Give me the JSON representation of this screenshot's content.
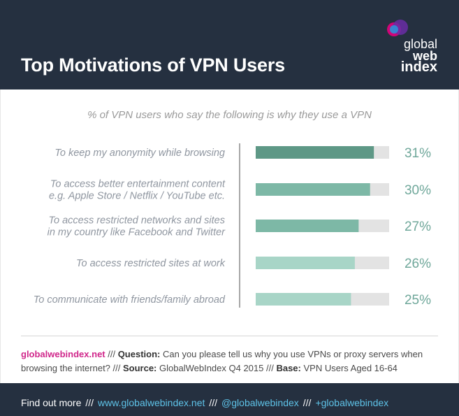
{
  "header": {
    "title": "Top Motivations of VPN Users",
    "logo": {
      "line1": "global",
      "line2": "web",
      "line3": "index"
    }
  },
  "chart_data": {
    "type": "bar",
    "orientation": "horizontal",
    "title": "Top Motivations of VPN Users",
    "subtitle": "% of VPN users who say the following is why they use a VPN",
    "categories": [
      [
        "To keep my anonymity while browsing"
      ],
      [
        "To access better entertainment content",
        "e.g. Apple Store / Netflix / YouTube etc."
      ],
      [
        "To access restricted networks and sites",
        "in my country like Facebook and Twitter"
      ],
      [
        "To access restricted sites at work"
      ],
      [
        "To communicate with friends/family abroad"
      ]
    ],
    "values": [
      31,
      30,
      27,
      26,
      25
    ],
    "value_labels": [
      "31%",
      "30%",
      "27%",
      "26%",
      "25%"
    ],
    "xlim": [
      0,
      35
    ],
    "colors": [
      "#5e9886",
      "#7db8a6",
      "#7db8a6",
      "#a8d5c7",
      "#a8d5c7"
    ],
    "track_color": "#e3e3e3",
    "value_label_color": "#6fa79a",
    "grid": false,
    "legend": "none"
  },
  "footnote": {
    "site": "globalwebindex.net",
    "sep": " /// ",
    "question_label": "Question:",
    "question": "Can you please tell us why you use VPNs or proxy servers when browsing the internet?",
    "source_label": "Source:",
    "source": "GlobalWebIndex Q4 2015",
    "base_label": "Base:",
    "base": "VPN Users Aged 16-64"
  },
  "footer": {
    "find_out_more": "Find out more",
    "sep": "///",
    "website": "www.globalwebindex.net",
    "twitter": "@globalwebindex",
    "gplus": "+globalwebindex"
  }
}
